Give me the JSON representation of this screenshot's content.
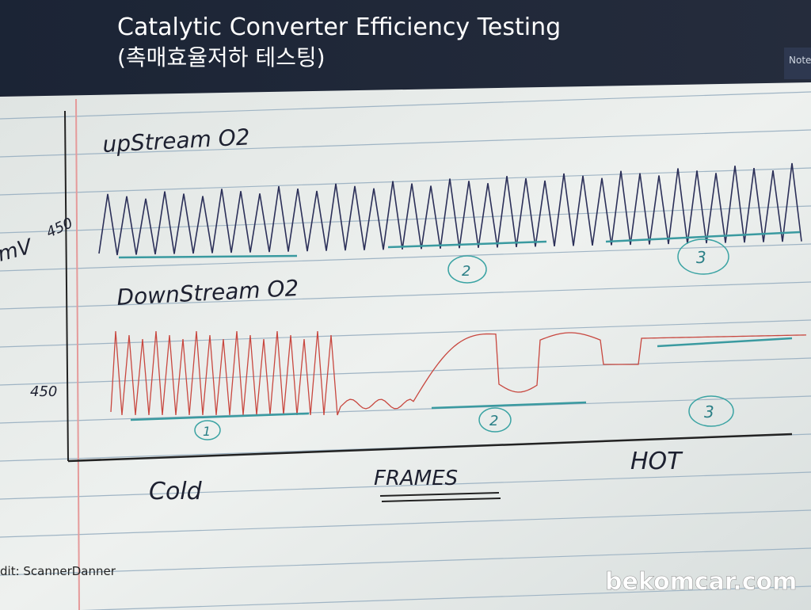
{
  "header": {
    "title": "Catalytic Converter Efficiency Testing",
    "subtitle": "(촉매효율저하 테스팅)",
    "side_tab": "Note"
  },
  "notebook": {
    "upstream_label": "upStream O2",
    "downstream_label": "DownStream O2",
    "y_unit": "mV",
    "upstream_level": "450",
    "downstream_level": "450",
    "x_axis_label": "FRAMES",
    "left_label": "Cold",
    "right_label": "HOT",
    "upstream_markers": [
      "2",
      "3"
    ],
    "downstream_markers": [
      "1",
      "2",
      "3"
    ]
  },
  "footer": {
    "credit": "dit: ScannerDanner",
    "watermark": "bekomcar.com"
  }
}
